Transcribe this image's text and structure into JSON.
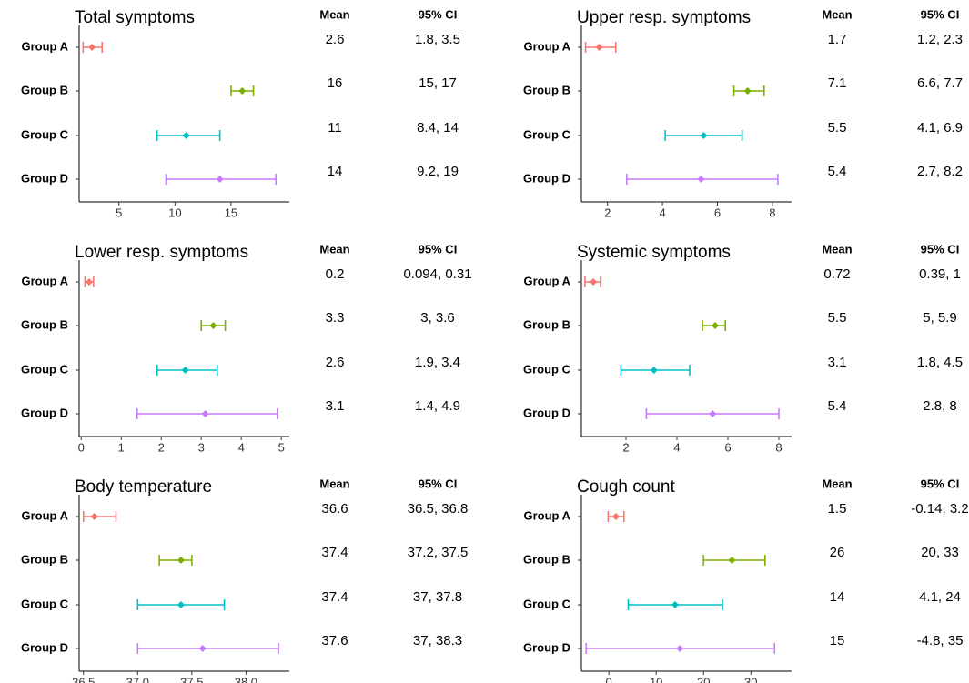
{
  "chart_data": [
    {
      "type": "forest",
      "title": "Total symptoms",
      "table_headers": [
        "Mean",
        "95% CI"
      ],
      "categories": [
        "Group A",
        "Group B",
        "Group C",
        "Group D"
      ],
      "colors": [
        "#F8766D",
        "#7CAE00",
        "#00BFC4",
        "#C77CFF"
      ],
      "values": [
        2.6,
        16,
        11,
        14
      ],
      "ci_low": [
        1.8,
        15,
        8.4,
        9.2
      ],
      "ci_high": [
        3.5,
        17,
        14,
        19
      ],
      "ci_labels": [
        "1.8, 3.5",
        "15, 17",
        "8.4, 14",
        "9.2, 19"
      ],
      "xlim": [
        1.45,
        20.2
      ],
      "xticks": [
        5,
        10,
        15
      ]
    },
    {
      "type": "forest",
      "title": "Upper resp. symptoms",
      "table_headers": [
        "Mean",
        "95% CI"
      ],
      "categories": [
        "Group A",
        "Group B",
        "Group C",
        "Group D"
      ],
      "colors": [
        "#F8766D",
        "#7CAE00",
        "#00BFC4",
        "#C77CFF"
      ],
      "values": [
        1.7,
        7.1,
        5.5,
        5.4
      ],
      "ci_low": [
        1.2,
        6.6,
        4.1,
        2.7
      ],
      "ci_high": [
        2.3,
        7.7,
        6.9,
        8.2
      ],
      "ci_labels": [
        "1.2, 2.3",
        "6.6, 7.7",
        "4.1, 6.9",
        "2.7, 8.2"
      ],
      "xlim": [
        1.05,
        8.7
      ],
      "xticks": [
        2,
        4,
        6,
        8
      ]
    },
    {
      "type": "forest",
      "title": "Lower resp. symptoms",
      "table_headers": [
        "Mean",
        "95% CI"
      ],
      "categories": [
        "Group A",
        "Group B",
        "Group C",
        "Group D"
      ],
      "colors": [
        "#F8766D",
        "#7CAE00",
        "#00BFC4",
        "#C77CFF"
      ],
      "values": [
        0.2,
        3.3,
        2.6,
        3.1
      ],
      "ci_low": [
        0.094,
        3,
        1.9,
        1.4
      ],
      "ci_high": [
        0.31,
        3.6,
        3.4,
        4.9
      ],
      "ci_labels": [
        "0.094, 0.31",
        "3, 3.6",
        "1.9, 3.4",
        "1.4, 4.9"
      ],
      "xlim": [
        -0.05,
        5.2
      ],
      "xticks": [
        0,
        1,
        2,
        3,
        4,
        5
      ]
    },
    {
      "type": "forest",
      "title": "Systemic symptoms",
      "table_headers": [
        "Mean",
        "95% CI"
      ],
      "categories": [
        "Group A",
        "Group B",
        "Group C",
        "Group D"
      ],
      "colors": [
        "#F8766D",
        "#7CAE00",
        "#00BFC4",
        "#C77CFF"
      ],
      "values": [
        0.72,
        5.5,
        3.1,
        5.4
      ],
      "ci_low": [
        0.39,
        5,
        1.8,
        2.8
      ],
      "ci_high": [
        1,
        5.9,
        4.5,
        8
      ],
      "ci_labels": [
        "0.39, 1",
        "5, 5.9",
        "1.8, 4.5",
        "2.8, 8"
      ],
      "xlim": [
        0.25,
        8.5
      ],
      "xticks": [
        2,
        4,
        6,
        8
      ]
    },
    {
      "type": "forest",
      "title": "Body temperature",
      "table_headers": [
        "Mean",
        "95% CI"
      ],
      "categories": [
        "Group A",
        "Group B",
        "Group C",
        "Group D"
      ],
      "colors": [
        "#F8766D",
        "#7CAE00",
        "#00BFC4",
        "#C77CFF"
      ],
      "values": [
        36.6,
        37.4,
        37.4,
        37.6
      ],
      "ci_low": [
        36.5,
        37.2,
        37,
        37
      ],
      "ci_high": [
        36.8,
        37.5,
        37.8,
        38.3
      ],
      "ci_labels": [
        "36.5, 36.8",
        "37.2, 37.5",
        "37, 37.8",
        "37, 38.3"
      ],
      "xlim": [
        36.46,
        38.4
      ],
      "xticks": [
        36.5,
        {
          "value": 37,
          "label": "37.0"
        },
        37.5,
        {
          "value": 38,
          "label": "38.0"
        }
      ]
    },
    {
      "type": "forest",
      "title": "Cough count",
      "table_headers": [
        "Mean",
        "95% CI"
      ],
      "categories": [
        "Group A",
        "Group B",
        "Group C",
        "Group D"
      ],
      "colors": [
        "#F8766D",
        "#7CAE00",
        "#00BFC4",
        "#C77CFF"
      ],
      "values": [
        1.5,
        26,
        14,
        15
      ],
      "ci_low": [
        -0.14,
        20,
        4.1,
        -4.8
      ],
      "ci_high": [
        3.2,
        33,
        24,
        35
      ],
      "ci_labels": [
        "-0.14, 3.2",
        "20, 33",
        "4.1, 24",
        "-4.8, 35"
      ],
      "xlim": [
        -5.8,
        38.6
      ],
      "xticks": [
        0,
        10,
        20,
        30
      ]
    }
  ]
}
